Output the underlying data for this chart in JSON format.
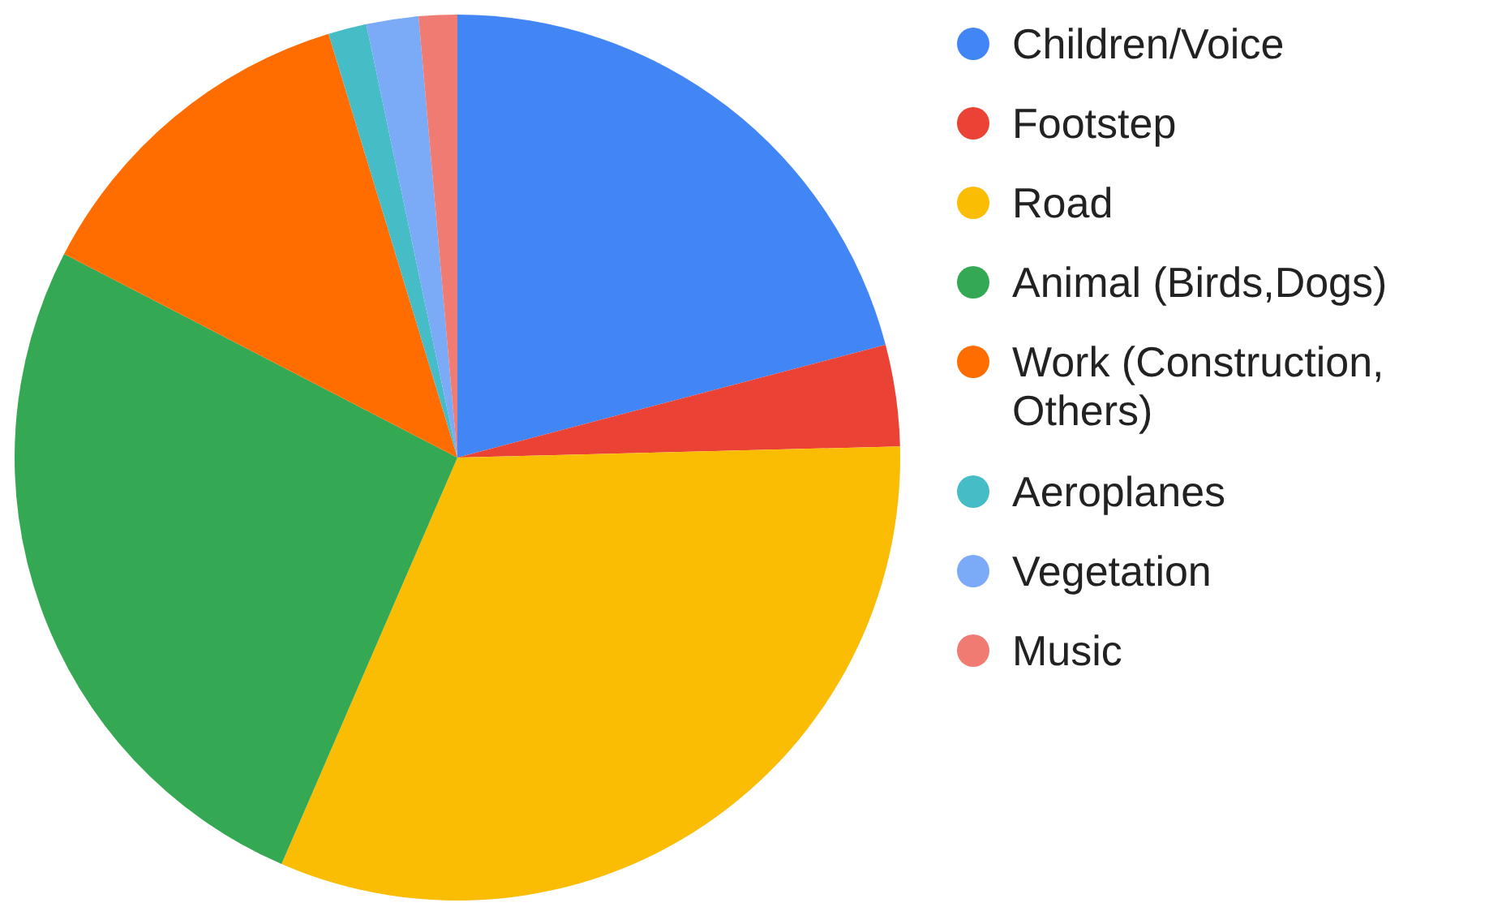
{
  "chart_data": {
    "type": "pie",
    "categories": [
      "Children/Voice",
      "Footstep",
      "Road",
      "Animal (Birds,Dogs)",
      "Work (Construction, Others)",
      "Aeroplanes",
      "Vegetation",
      "Music"
    ],
    "values": [
      20.9,
      3.7,
      31.9,
      26.1,
      12.7,
      1.4,
      1.9,
      1.4
    ],
    "colors": [
      "#4285f4",
      "#ea4335",
      "#fbbc04",
      "#34a853",
      "#ff6d01",
      "#46bdc6",
      "#7baaf7",
      "#f07b72"
    ],
    "legend": "right"
  }
}
